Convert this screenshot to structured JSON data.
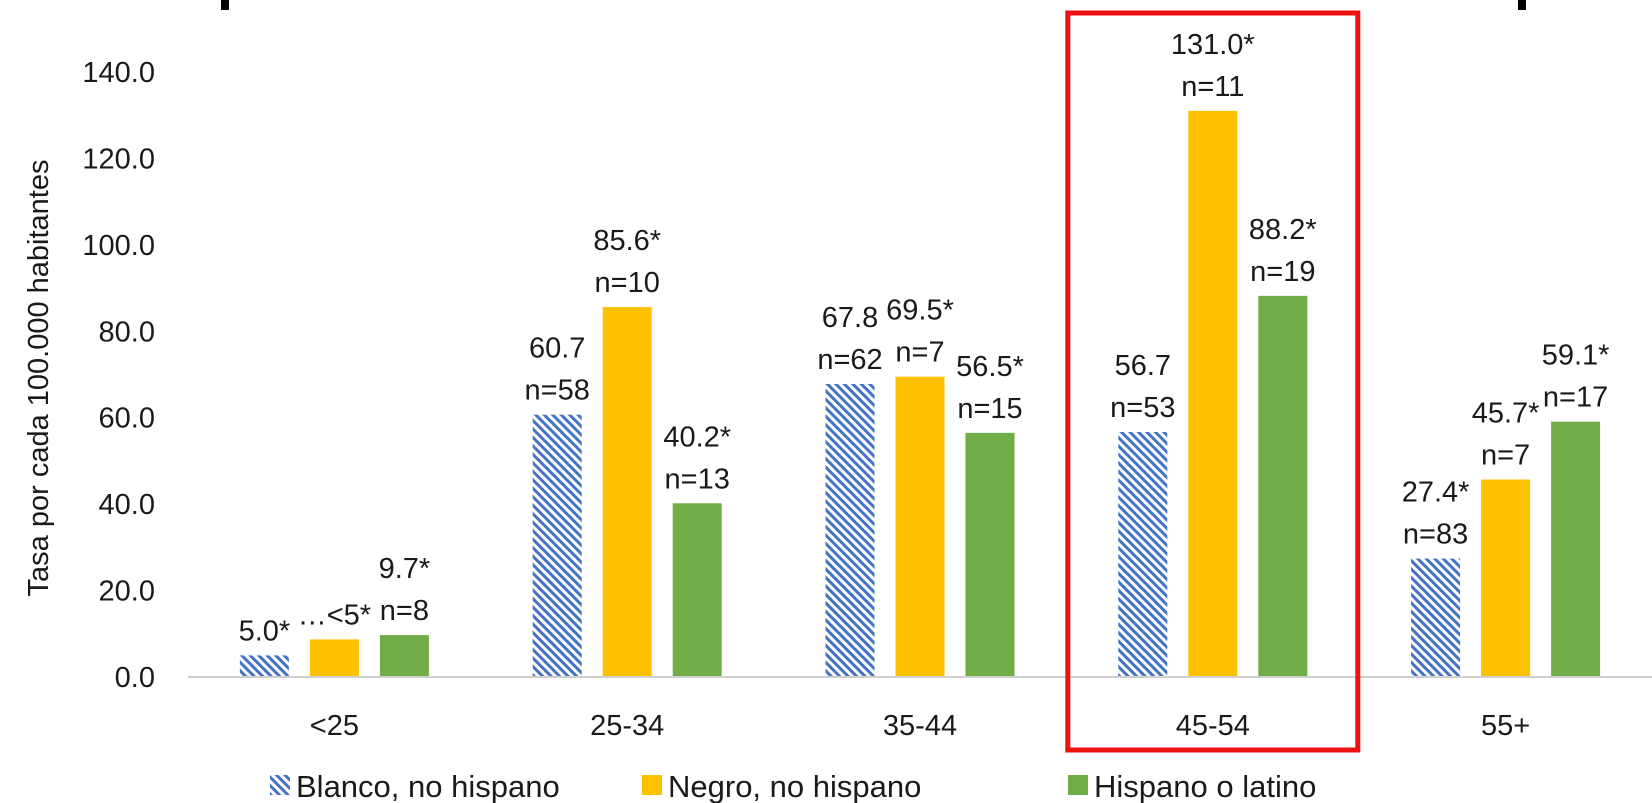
{
  "chart_data": {
    "type": "bar",
    "categories": [
      "<25",
      "25-34",
      "35-44",
      "45-54",
      "55+"
    ],
    "series": [
      {
        "name": "Blanco, no hispano",
        "color": "#4472c4",
        "pattern": "diagonal-hatch",
        "values": [
          5.0,
          60.7,
          67.8,
          56.7,
          27.4
        ],
        "labels": [
          [
            "5.0*",
            ""
          ],
          [
            "60.7",
            "n=58"
          ],
          [
            "67.8",
            "n=62"
          ],
          [
            "56.7",
            "n=53"
          ],
          [
            "27.4*",
            "n=83"
          ]
        ]
      },
      {
        "name": "Negro, no hispano",
        "color": "#ffc000",
        "values": [
          8.7,
          85.6,
          69.5,
          131.0,
          45.7
        ],
        "labels": [
          [
            "…<5*",
            ""
          ],
          [
            "85.6*",
            "n=10"
          ],
          [
            "69.5*",
            "n=7"
          ],
          [
            "131.0*",
            "n=11"
          ],
          [
            "45.7*",
            "n=7"
          ]
        ]
      },
      {
        "name": "Hispano o latino",
        "color": "#70ad47",
        "values": [
          9.7,
          40.2,
          56.5,
          88.2,
          59.1
        ],
        "labels": [
          [
            "9.7*",
            "n=8"
          ],
          [
            "40.2*",
            "n=13"
          ],
          [
            "56.5*",
            "n=15"
          ],
          [
            "88.2*",
            "n=19"
          ],
          [
            "59.1*",
            "n=17"
          ]
        ]
      }
    ],
    "ylabel": "Tasa por cada 100.000 habitantes",
    "xlabel": "",
    "ylim": [
      0,
      140
    ],
    "yticks": [
      "0.0",
      "20.0",
      "40.0",
      "60.0",
      "80.0",
      "100.0",
      "120.0",
      "140.0"
    ],
    "grid": false,
    "legend": "bottom",
    "highlight": {
      "category": "45-54",
      "color": "#ee1111"
    }
  }
}
